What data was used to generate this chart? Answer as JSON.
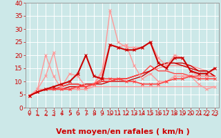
{
  "title": "",
  "xlabel": "Vent moyen/en rafales ( km/h )",
  "xlim": [
    -0.5,
    23.5
  ],
  "ylim": [
    0,
    40
  ],
  "xticks": [
    0,
    1,
    2,
    3,
    4,
    5,
    6,
    7,
    8,
    9,
    10,
    11,
    12,
    13,
    14,
    15,
    16,
    17,
    18,
    19,
    20,
    21,
    22,
    23
  ],
  "yticks": [
    0,
    5,
    10,
    15,
    20,
    25,
    30,
    35,
    40
  ],
  "bg_color": "#cce8e8",
  "grid_color": "#ffffff",
  "series": [
    {
      "x": [
        0,
        1,
        2,
        3,
        4,
        5,
        6,
        7,
        8,
        9,
        10,
        11,
        12,
        13,
        14,
        15,
        16,
        17,
        18,
        19,
        20,
        21,
        22,
        23
      ],
      "y": [
        4.5,
        7,
        7,
        7,
        7,
        7,
        7,
        7,
        8,
        8,
        8,
        8,
        8,
        8,
        8,
        8,
        8,
        8,
        8,
        8,
        8,
        8,
        8,
        8
      ],
      "color": "#ff9999",
      "lw": 1.0,
      "marker": null,
      "zorder": 2
    },
    {
      "x": [
        0,
        1,
        2,
        3,
        4,
        5,
        6,
        7,
        8,
        9,
        10,
        11,
        12,
        13,
        14,
        15,
        16,
        17,
        18,
        19,
        20,
        21,
        22,
        23
      ],
      "y": [
        4.5,
        6,
        7,
        7,
        7,
        8,
        8,
        9,
        9,
        10,
        10,
        11,
        11,
        12,
        13,
        14,
        15,
        16,
        16,
        16,
        16,
        15,
        14,
        12
      ],
      "color": "#ff9999",
      "lw": 1.0,
      "marker": null,
      "zorder": 2
    },
    {
      "x": [
        0,
        1,
        2,
        3,
        4,
        5,
        6,
        7,
        8,
        9,
        10,
        11,
        12,
        13,
        14,
        15,
        16,
        17,
        18,
        19,
        20,
        21,
        22,
        23
      ],
      "y": [
        4.5,
        6,
        7,
        7,
        7,
        8,
        8,
        9,
        9,
        10,
        10,
        11,
        11,
        12,
        13,
        14,
        16,
        17,
        17,
        17,
        16,
        14,
        14,
        12
      ],
      "color": "#cc0000",
      "lw": 1.0,
      "marker": null,
      "zorder": 2
    },
    {
      "x": [
        0,
        1,
        2,
        3,
        4,
        5,
        6,
        7,
        8,
        9,
        10,
        11,
        12,
        13,
        14,
        15,
        16,
        17,
        18,
        19,
        20,
        21,
        22,
        23
      ],
      "y": [
        4.5,
        6,
        7,
        7,
        8,
        9,
        9,
        8,
        9,
        9,
        10,
        10,
        10,
        11,
        12,
        14,
        16,
        17,
        17,
        16,
        15,
        14,
        14,
        12
      ],
      "color": "#cc0000",
      "lw": 1.0,
      "marker": null,
      "zorder": 2
    },
    {
      "x": [
        0,
        1,
        2,
        3,
        4,
        5,
        6,
        7,
        8,
        9,
        10,
        11,
        12,
        13,
        14,
        15,
        16,
        17,
        18,
        19,
        20,
        21,
        22,
        23
      ],
      "y": [
        4.5,
        6,
        7,
        7,
        8,
        9,
        9,
        8,
        9,
        10,
        10,
        11,
        11,
        12,
        13,
        16,
        14,
        14,
        13,
        13,
        12,
        12,
        12,
        12
      ],
      "color": "#ff4444",
      "lw": 1.0,
      "marker": null,
      "zorder": 2
    },
    {
      "x": [
        0,
        1,
        2,
        3,
        4,
        5,
        6,
        7,
        8,
        9,
        10,
        11,
        12,
        13,
        14,
        15,
        16,
        17,
        18,
        19,
        20,
        21,
        22,
        23
      ],
      "y": [
        4.5,
        6,
        7,
        7,
        7,
        7,
        8,
        8,
        9,
        11,
        11,
        11,
        10,
        10,
        9,
        9,
        9,
        10,
        11,
        11,
        12,
        11,
        11,
        11
      ],
      "color": "#ff4444",
      "lw": 1.2,
      "marker": "x",
      "ms": 3,
      "zorder": 3
    },
    {
      "x": [
        0,
        1,
        2,
        3,
        4,
        5,
        6,
        7,
        8,
        9,
        10,
        11,
        12,
        13,
        14,
        15,
        16,
        17,
        18,
        19,
        20,
        21,
        22,
        23
      ],
      "y": [
        4.5,
        7,
        20,
        12,
        7,
        7,
        7,
        7,
        9,
        14,
        24,
        23,
        24,
        16,
        11,
        13,
        10,
        10,
        12,
        12,
        12,
        9,
        7,
        8
      ],
      "color": "#ff9999",
      "lw": 1.0,
      "marker": "x",
      "ms": 3,
      "zorder": 2
    },
    {
      "x": [
        0,
        1,
        2,
        3,
        4,
        5,
        6,
        7,
        8,
        9,
        10,
        11,
        12,
        13,
        14,
        15,
        16,
        17,
        18,
        19,
        20,
        21,
        22,
        23
      ],
      "y": [
        4.5,
        7,
        12,
        21,
        8,
        13,
        12,
        8,
        9,
        13,
        37,
        25,
        23,
        23,
        23,
        25,
        19,
        16,
        20,
        19,
        14,
        12,
        12,
        15
      ],
      "color": "#ff9999",
      "lw": 1.0,
      "marker": "x",
      "ms": 3,
      "zorder": 2
    },
    {
      "x": [
        0,
        1,
        2,
        3,
        4,
        5,
        6,
        7,
        8,
        9,
        10,
        11,
        12,
        13,
        14,
        15,
        16,
        17,
        18,
        19,
        20,
        21,
        22,
        23
      ],
      "y": [
        4.5,
        6,
        7,
        8,
        9,
        10,
        13,
        20,
        12,
        11,
        24,
        23,
        22,
        22,
        23,
        25,
        17,
        15,
        19,
        19,
        14,
        13,
        13,
        15
      ],
      "color": "#cc0000",
      "lw": 1.5,
      "marker": "x",
      "ms": 3,
      "zorder": 4
    }
  ],
  "wind_arrows": [
    "↑",
    "→",
    "→",
    "→",
    "↑",
    "↗",
    "↗",
    "↗",
    "↗",
    "↗",
    "↗",
    "↗",
    "↗",
    "↗",
    "↗",
    "↗",
    "↗",
    "↗",
    "↗",
    "↗",
    "↗",
    "↗",
    "→",
    "→"
  ],
  "xlabel_color": "#cc0000",
  "xlabel_fontsize": 8,
  "tick_color": "#cc0000",
  "tick_fontsize": 6.5
}
